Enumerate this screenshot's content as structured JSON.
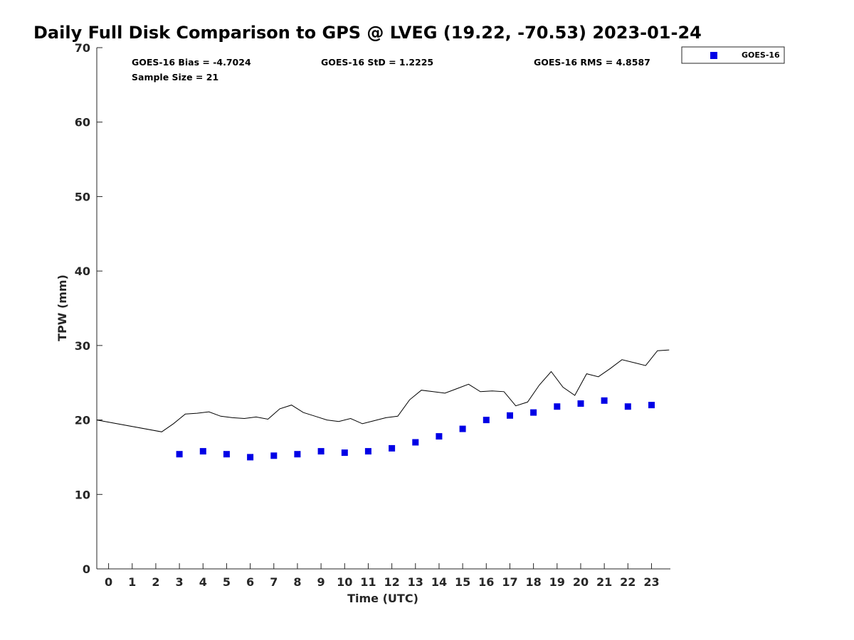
{
  "chart_data": {
    "type": "scatter",
    "title": "Daily Full Disk Comparison to GPS @ LVEG (19.22, -70.53) 2023-01-24",
    "xlabel": "Time (UTC)",
    "ylabel": "TPW (mm)",
    "xlim": [
      -0.5,
      23.8
    ],
    "ylim": [
      0,
      70
    ],
    "x_ticks": [
      0,
      1,
      2,
      3,
      4,
      5,
      6,
      7,
      8,
      9,
      10,
      11,
      12,
      13,
      14,
      15,
      16,
      17,
      18,
      19,
      20,
      21,
      22,
      23
    ],
    "y_ticks": [
      0,
      10,
      20,
      30,
      40,
      50,
      60,
      70
    ],
    "grid": false,
    "legend_position": "outside-top-right",
    "stats": {
      "bias": "GOES-16 Bias = -4.7024",
      "std": "GOES-16 StD = 1.2225",
      "rms": "GOES-16 RMS = 4.8587",
      "sample": "Sample Size = 21"
    },
    "series": [
      {
        "name": "GOES-16",
        "type": "scatter",
        "marker": "square",
        "color": "#0000e6",
        "x": [
          3,
          4,
          5,
          6,
          7,
          8,
          9,
          10,
          11,
          12,
          13,
          14,
          15,
          16,
          17,
          18,
          19,
          20,
          21,
          22,
          23
        ],
        "y": [
          15.4,
          15.8,
          15.4,
          15.0,
          15.2,
          15.4,
          15.8,
          15.6,
          15.8,
          16.2,
          17.0,
          17.8,
          18.8,
          20.0,
          20.6,
          21.0,
          21.8,
          22.2,
          22.6,
          21.8,
          22.0
        ]
      },
      {
        "type": "line",
        "color": "#000000",
        "x": [
          -0.5,
          2.25,
          2.75,
          3.25,
          3.75,
          4.25,
          4.75,
          5.25,
          5.75,
          6.25,
          6.75,
          7.25,
          7.75,
          8.25,
          8.75,
          9.25,
          9.75,
          10.25,
          10.75,
          11.25,
          11.75,
          12.25,
          12.75,
          13.25,
          13.75,
          14.25,
          14.75,
          15.25,
          15.75,
          16.25,
          16.75,
          17.25,
          17.75,
          18.25,
          18.75,
          19.25,
          19.75,
          20.25,
          20.75,
          21.25,
          21.75,
          22.25,
          22.75,
          23.25,
          23.75
        ],
        "y": [
          20.0,
          18.4,
          19.5,
          20.8,
          20.9,
          21.1,
          20.5,
          20.3,
          20.2,
          20.4,
          20.1,
          21.5,
          22.0,
          21.0,
          20.5,
          20.0,
          19.8,
          20.2,
          19.5,
          19.9,
          20.3,
          20.5,
          22.7,
          24.0,
          23.8,
          23.6,
          24.2,
          24.8,
          23.8,
          23.9,
          23.8,
          21.9,
          22.4,
          24.7,
          26.5,
          24.4,
          23.3,
          26.2,
          25.8,
          26.9,
          28.1,
          27.7,
          27.3,
          29.3,
          29.4
        ]
      }
    ]
  }
}
